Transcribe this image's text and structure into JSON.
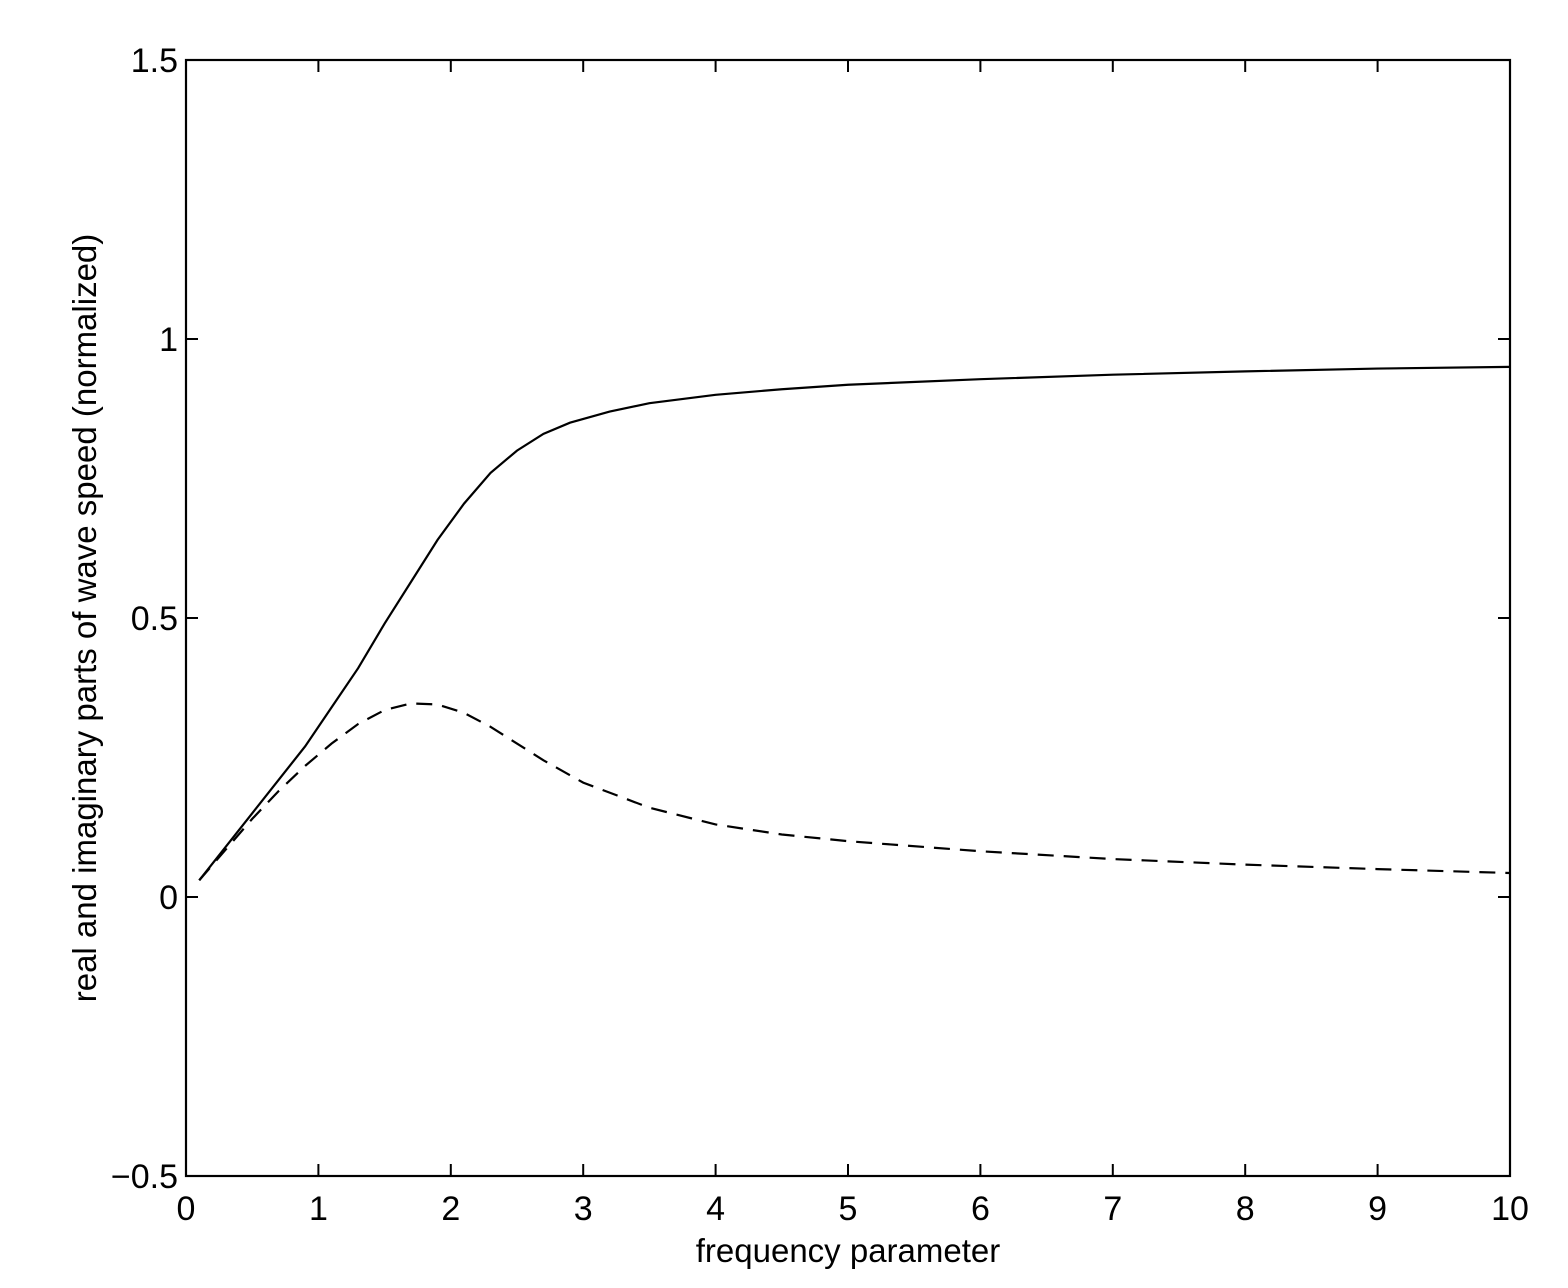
{
  "chart_data": {
    "type": "line",
    "title": "",
    "xlabel": "frequency parameter",
    "ylabel": "real and imaginary parts of wave speed (normalized)",
    "xlim": [
      0,
      10
    ],
    "ylim": [
      -0.5,
      1.5
    ],
    "xticks": [
      0,
      1,
      2,
      3,
      4,
      5,
      6,
      7,
      8,
      9,
      10
    ],
    "xtick_labels": [
      "0",
      "1",
      "2",
      "3",
      "4",
      "5",
      "6",
      "7",
      "8",
      "9",
      "10"
    ],
    "yticks": [
      -0.5,
      0,
      0.5,
      1,
      1.5
    ],
    "ytick_labels": [
      "−0.5",
      "0",
      "0.5",
      "1",
      "1.5"
    ],
    "grid": false,
    "legend": "none",
    "series": [
      {
        "style": "solid",
        "color": "#000000",
        "x": [
          0.1,
          0.3,
          0.5,
          0.7,
          0.9,
          1.1,
          1.3,
          1.5,
          1.7,
          1.9,
          2.1,
          2.3,
          2.5,
          2.7,
          2.9,
          3.2,
          3.5,
          4.0,
          4.5,
          5.0,
          6.0,
          7.0,
          8.0,
          9.0,
          10.0
        ],
        "y": [
          0.03,
          0.09,
          0.15,
          0.21,
          0.27,
          0.34,
          0.41,
          0.49,
          0.565,
          0.64,
          0.705,
          0.76,
          0.8,
          0.83,
          0.85,
          0.87,
          0.885,
          0.9,
          0.91,
          0.918,
          0.928,
          0.936,
          0.942,
          0.947,
          0.95
        ]
      },
      {
        "style": "dashed",
        "color": "#000000",
        "x": [
          0.1,
          0.3,
          0.5,
          0.7,
          0.9,
          1.1,
          1.3,
          1.5,
          1.7,
          1.9,
          2.1,
          2.3,
          2.5,
          2.7,
          3.0,
          3.5,
          4.0,
          4.5,
          5.0,
          6.0,
          7.0,
          8.0,
          9.0,
          10.0
        ],
        "y": [
          0.03,
          0.085,
          0.14,
          0.19,
          0.235,
          0.275,
          0.31,
          0.335,
          0.347,
          0.345,
          0.33,
          0.305,
          0.275,
          0.245,
          0.205,
          0.16,
          0.13,
          0.112,
          0.1,
          0.082,
          0.068,
          0.058,
          0.05,
          0.043
        ]
      }
    ]
  }
}
